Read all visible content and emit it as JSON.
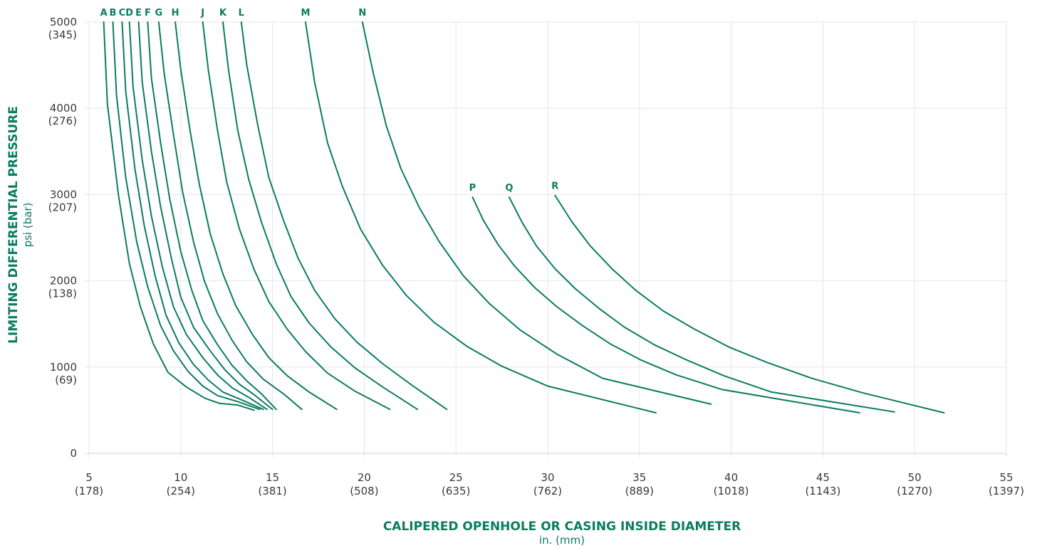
{
  "chart_data": {
    "type": "line",
    "xlabel": "CALIPERED OPENHOLE OR CASING INSIDE DIAMETER",
    "xunit": "in. (mm)",
    "ylabel": "LIMITING DIFFERENTIAL PRESSURE",
    "yunit": "psi (bar)",
    "xlim": [
      5,
      55
    ],
    "ylim": [
      0,
      5000
    ],
    "grid": true,
    "x_ticks": [
      {
        "value": 5,
        "label": "5",
        "sub": "(178)"
      },
      {
        "value": 10,
        "label": "10",
        "sub": "(254)"
      },
      {
        "value": 15,
        "label": "15",
        "sub": "(381)"
      },
      {
        "value": 20,
        "label": "20",
        "sub": "(508)"
      },
      {
        "value": 25,
        "label": "25",
        "sub": "(635)"
      },
      {
        "value": 30,
        "label": "30",
        "sub": "(762)"
      },
      {
        "value": 35,
        "label": "35",
        "sub": "(889)"
      },
      {
        "value": 40,
        "label": "40",
        "sub": "(1018)"
      },
      {
        "value": 45,
        "label": "45",
        "sub": "(1143)"
      },
      {
        "value": 50,
        "label": "50",
        "sub": "(1270)"
      },
      {
        "value": 55,
        "label": "55",
        "sub": "(1397)"
      }
    ],
    "y_ticks": [
      {
        "value": 0,
        "label": "0",
        "sub": ""
      },
      {
        "value": 1000,
        "label": "1000",
        "sub": "(69)"
      },
      {
        "value": 2000,
        "label": "2000",
        "sub": "(138)"
      },
      {
        "value": 3000,
        "label": "3000",
        "sub": "(207)"
      },
      {
        "value": 4000,
        "label": "4000",
        "sub": "(276)"
      },
      {
        "value": 5000,
        "label": "5000",
        "sub": "(345)"
      }
    ],
    "series": [
      {
        "name": "A",
        "points": [
          [
            5.8,
            5000
          ],
          [
            6.0,
            4050
          ],
          [
            6.6,
            3000
          ],
          [
            7.2,
            2200
          ],
          [
            7.8,
            1700
          ],
          [
            8.5,
            1270
          ],
          [
            9.3,
            940
          ],
          [
            10.3,
            770
          ],
          [
            11.3,
            640
          ],
          [
            12.1,
            580
          ],
          [
            13.1,
            560
          ],
          [
            14.0,
            500
          ]
        ]
      },
      {
        "name": "B",
        "points": [
          [
            6.3,
            5000
          ],
          [
            6.5,
            4150
          ],
          [
            7.0,
            3200
          ],
          [
            7.6,
            2450
          ],
          [
            8.2,
            1930
          ],
          [
            8.9,
            1480
          ],
          [
            9.6,
            1190
          ],
          [
            10.4,
            950
          ],
          [
            11.2,
            780
          ],
          [
            12.0,
            670
          ],
          [
            13.1,
            600
          ],
          [
            14.3,
            510
          ]
        ]
      },
      {
        "name": "C",
        "points": [
          [
            6.8,
            5000
          ],
          [
            7.0,
            4200
          ],
          [
            7.5,
            3300
          ],
          [
            8.0,
            2650
          ],
          [
            8.6,
            2060
          ],
          [
            9.2,
            1600
          ],
          [
            9.9,
            1280
          ],
          [
            10.7,
            1030
          ],
          [
            11.5,
            850
          ],
          [
            12.3,
            710
          ],
          [
            13.2,
            630
          ],
          [
            14.5,
            510
          ]
        ]
      },
      {
        "name": "D",
        "points": [
          [
            7.2,
            5000
          ],
          [
            7.4,
            4250
          ],
          [
            7.9,
            3400
          ],
          [
            8.4,
            2750
          ],
          [
            9.0,
            2160
          ],
          [
            9.6,
            1700
          ],
          [
            10.3,
            1380
          ],
          [
            11.2,
            1110
          ],
          [
            12.0,
            910
          ],
          [
            12.8,
            760
          ],
          [
            13.7,
            650
          ],
          [
            14.7,
            510
          ]
        ]
      },
      {
        "name": "E",
        "points": [
          [
            7.7,
            5000
          ],
          [
            7.9,
            4300
          ],
          [
            8.4,
            3500
          ],
          [
            8.9,
            2860
          ],
          [
            9.5,
            2250
          ],
          [
            10.0,
            1810
          ],
          [
            10.7,
            1460
          ],
          [
            11.6,
            1190
          ],
          [
            12.4,
            970
          ],
          [
            13.2,
            800
          ],
          [
            14.0,
            680
          ],
          [
            15.0,
            510
          ]
        ]
      },
      {
        "name": "F",
        "points": [
          [
            8.2,
            5000
          ],
          [
            8.4,
            4350
          ],
          [
            8.9,
            3600
          ],
          [
            9.4,
            2950
          ],
          [
            10.0,
            2340
          ],
          [
            10.6,
            1890
          ],
          [
            11.2,
            1540
          ],
          [
            12.0,
            1260
          ],
          [
            12.8,
            1020
          ],
          [
            13.6,
            840
          ],
          [
            14.4,
            690
          ],
          [
            15.2,
            510
          ]
        ]
      },
      {
        "name": "G",
        "points": [
          [
            8.8,
            5000
          ],
          [
            9.1,
            4400
          ],
          [
            9.6,
            3700
          ],
          [
            10.1,
            3030
          ],
          [
            10.7,
            2450
          ],
          [
            11.3,
            1990
          ],
          [
            12.0,
            1620
          ],
          [
            12.8,
            1310
          ],
          [
            13.6,
            1060
          ],
          [
            14.5,
            860
          ],
          [
            15.6,
            690
          ],
          [
            16.6,
            510
          ]
        ]
      },
      {
        "name": "H",
        "points": [
          [
            9.7,
            5000
          ],
          [
            10.0,
            4450
          ],
          [
            10.5,
            3750
          ],
          [
            11.0,
            3130
          ],
          [
            11.6,
            2550
          ],
          [
            12.3,
            2080
          ],
          [
            13.0,
            1710
          ],
          [
            13.9,
            1380
          ],
          [
            14.8,
            1110
          ],
          [
            15.8,
            900
          ],
          [
            17.0,
            710
          ],
          [
            18.5,
            510
          ]
        ]
      },
      {
        "name": "J",
        "points": [
          [
            11.2,
            5000
          ],
          [
            11.5,
            4450
          ],
          [
            12.0,
            3750
          ],
          [
            12.5,
            3150
          ],
          [
            13.2,
            2600
          ],
          [
            14.0,
            2130
          ],
          [
            14.8,
            1760
          ],
          [
            15.8,
            1440
          ],
          [
            16.8,
            1180
          ],
          [
            18.0,
            930
          ],
          [
            19.5,
            720
          ],
          [
            21.4,
            510
          ]
        ]
      },
      {
        "name": "K",
        "points": [
          [
            12.3,
            5000
          ],
          [
            12.6,
            4450
          ],
          [
            13.1,
            3750
          ],
          [
            13.7,
            3180
          ],
          [
            14.4,
            2680
          ],
          [
            15.2,
            2200
          ],
          [
            16.0,
            1820
          ],
          [
            17.0,
            1510
          ],
          [
            18.2,
            1230
          ],
          [
            19.5,
            990
          ],
          [
            21.0,
            770
          ],
          [
            22.9,
            510
          ]
        ]
      },
      {
        "name": "L",
        "points": [
          [
            13.3,
            5000
          ],
          [
            13.6,
            4500
          ],
          [
            14.2,
            3800
          ],
          [
            14.8,
            3200
          ],
          [
            15.6,
            2700
          ],
          [
            16.4,
            2260
          ],
          [
            17.3,
            1890
          ],
          [
            18.4,
            1560
          ],
          [
            19.6,
            1290
          ],
          [
            21.0,
            1040
          ],
          [
            22.6,
            790
          ],
          [
            24.5,
            510
          ]
        ]
      },
      {
        "name": "M",
        "points": [
          [
            16.8,
            5000
          ],
          [
            17.3,
            4300
          ],
          [
            18.0,
            3600
          ],
          [
            18.8,
            3100
          ],
          [
            19.8,
            2600
          ],
          [
            21.0,
            2180
          ],
          [
            22.3,
            1830
          ],
          [
            23.8,
            1520
          ],
          [
            25.6,
            1240
          ],
          [
            27.5,
            1010
          ],
          [
            30.0,
            780
          ],
          [
            35.9,
            470
          ]
        ]
      },
      {
        "name": "N",
        "points": [
          [
            19.9,
            5000
          ],
          [
            20.5,
            4400
          ],
          [
            21.2,
            3800
          ],
          [
            22.0,
            3300
          ],
          [
            23.0,
            2850
          ],
          [
            24.1,
            2450
          ],
          [
            25.4,
            2060
          ],
          [
            26.8,
            1740
          ],
          [
            28.5,
            1430
          ],
          [
            30.5,
            1150
          ],
          [
            33.0,
            870
          ],
          [
            38.9,
            570
          ]
        ]
      },
      {
        "name": "P",
        "points": [
          [
            25.9,
            2970
          ],
          [
            26.5,
            2700
          ],
          [
            27.3,
            2420
          ],
          [
            28.2,
            2170
          ],
          [
            29.3,
            1920
          ],
          [
            30.5,
            1700
          ],
          [
            31.9,
            1480
          ],
          [
            33.4,
            1270
          ],
          [
            35.1,
            1080
          ],
          [
            37.0,
            910
          ],
          [
            39.5,
            740
          ],
          [
            47.0,
            470
          ]
        ]
      },
      {
        "name": "Q",
        "points": [
          [
            27.9,
            2970
          ],
          [
            28.6,
            2680
          ],
          [
            29.4,
            2400
          ],
          [
            30.4,
            2140
          ],
          [
            31.5,
            1910
          ],
          [
            32.8,
            1680
          ],
          [
            34.2,
            1460
          ],
          [
            35.8,
            1260
          ],
          [
            37.6,
            1080
          ],
          [
            39.6,
            900
          ],
          [
            42.2,
            710
          ],
          [
            48.9,
            480
          ]
        ]
      },
      {
        "name": "R",
        "points": [
          [
            30.4,
            2990
          ],
          [
            31.3,
            2690
          ],
          [
            32.3,
            2410
          ],
          [
            33.5,
            2140
          ],
          [
            34.8,
            1890
          ],
          [
            36.3,
            1650
          ],
          [
            38.0,
            1440
          ],
          [
            39.9,
            1230
          ],
          [
            42.0,
            1050
          ],
          [
            44.4,
            870
          ],
          [
            47.2,
            700
          ],
          [
            51.6,
            470
          ]
        ]
      }
    ]
  }
}
